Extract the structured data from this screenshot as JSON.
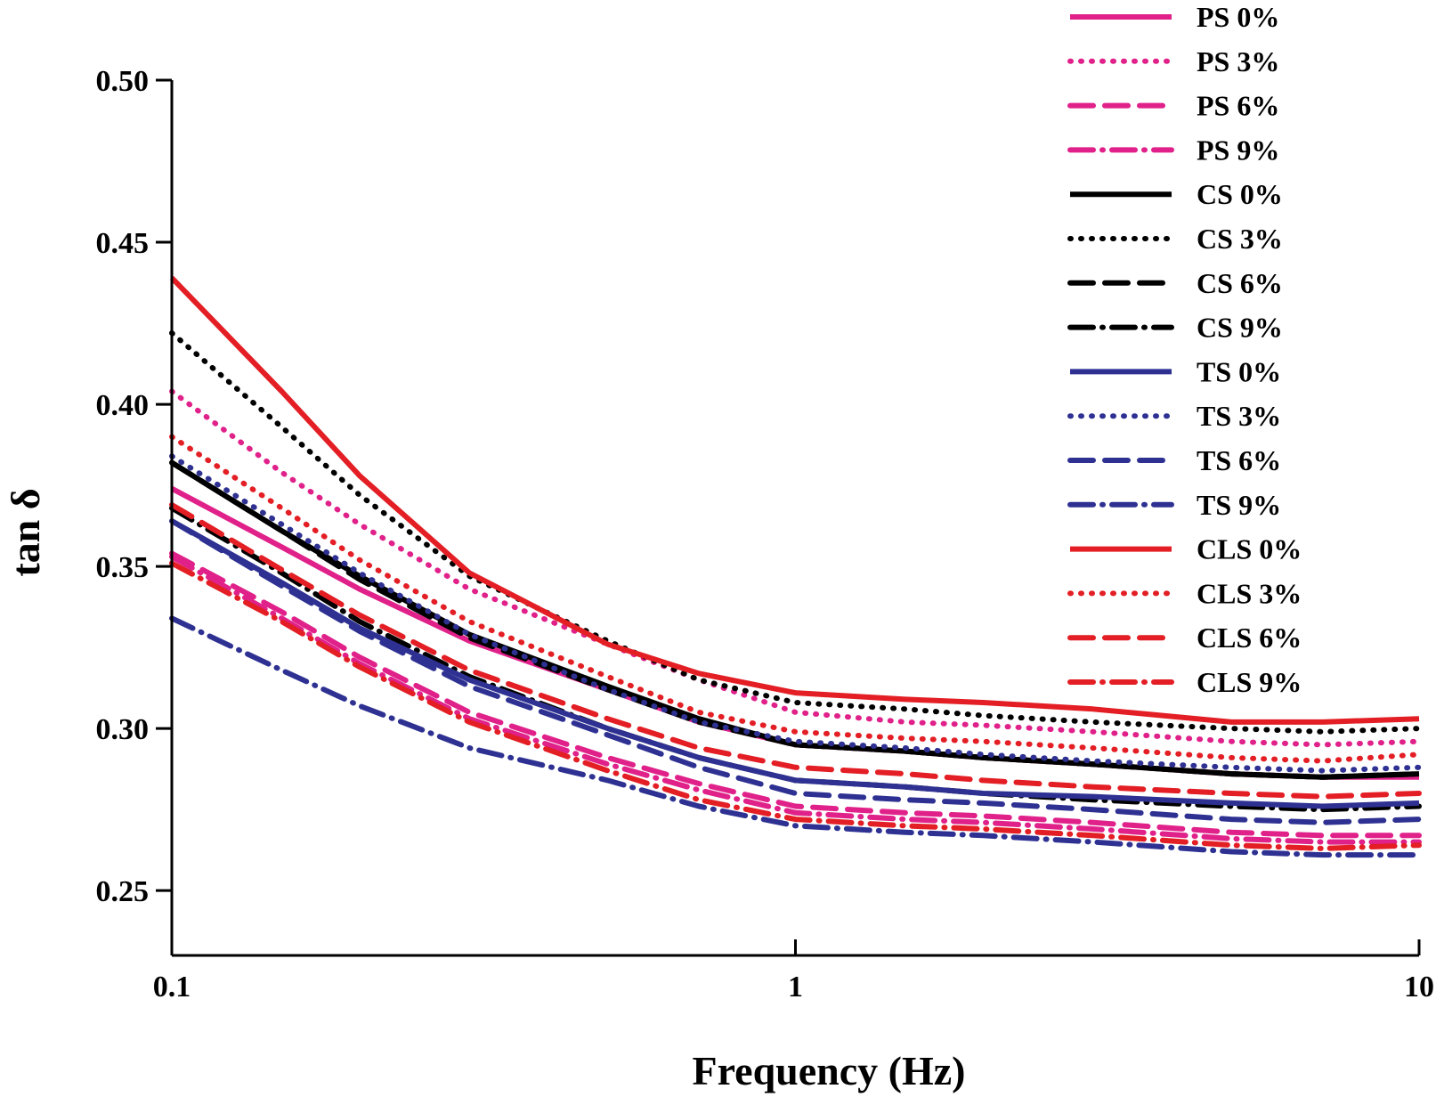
{
  "chart_data": {
    "type": "line",
    "xlabel": "Frequency (Hz)",
    "ylabel": "tan δ",
    "xscale": "log",
    "xlim": [
      0.1,
      10
    ],
    "ylim": [
      0.23,
      0.5
    ],
    "x_ticks": [
      0.1,
      1,
      10
    ],
    "x_tick_labels": [
      "0.1",
      "1",
      "10"
    ],
    "y_ticks": [
      0.25,
      0.3,
      0.35,
      0.4,
      0.45,
      0.5
    ],
    "y_tick_labels": [
      "0.25",
      "0.30",
      "0.35",
      "0.40",
      "0.45",
      "0.50"
    ],
    "grid": false,
    "legend_position": "top-right",
    "x": [
      0.1,
      0.15,
      0.2,
      0.3,
      0.5,
      0.7,
      1,
      1.5,
      2,
      3,
      5,
      7,
      10
    ],
    "series": [
      {
        "name": "PS 0%",
        "color": "#e0218a",
        "dash": "solid",
        "values": [
          0.374,
          0.356,
          0.343,
          0.327,
          0.312,
          0.302,
          0.295,
          0.293,
          0.291,
          0.289,
          0.286,
          0.285,
          0.285
        ]
      },
      {
        "name": "PS 3%",
        "color": "#e0218a",
        "dash": "dot",
        "values": [
          0.404,
          0.379,
          0.363,
          0.343,
          0.326,
          0.315,
          0.305,
          0.302,
          0.301,
          0.299,
          0.296,
          0.295,
          0.296
        ]
      },
      {
        "name": "PS 6%",
        "color": "#e0218a",
        "dash": "dash",
        "values": [
          0.354,
          0.336,
          0.322,
          0.305,
          0.291,
          0.283,
          0.276,
          0.274,
          0.273,
          0.271,
          0.268,
          0.267,
          0.267
        ]
      },
      {
        "name": "PS 9%",
        "color": "#e0218a",
        "dash": "dashdot",
        "values": [
          0.353,
          0.334,
          0.32,
          0.303,
          0.289,
          0.281,
          0.274,
          0.272,
          0.271,
          0.269,
          0.266,
          0.265,
          0.265
        ]
      },
      {
        "name": "CS 0%",
        "color": "#000000",
        "dash": "solid",
        "values": [
          0.382,
          0.361,
          0.347,
          0.329,
          0.313,
          0.303,
          0.295,
          0.293,
          0.291,
          0.289,
          0.286,
          0.285,
          0.286
        ]
      },
      {
        "name": "CS 3%",
        "color": "#000000",
        "dash": "dot",
        "values": [
          0.422,
          0.393,
          0.372,
          0.347,
          0.327,
          0.315,
          0.308,
          0.306,
          0.304,
          0.302,
          0.3,
          0.299,
          0.3
        ]
      },
      {
        "name": "CS 6%",
        "color": "#000000",
        "dash": "dash",
        "values": [
          0.382,
          0.361,
          0.346,
          0.328,
          0.312,
          0.302,
          0.295,
          0.293,
          0.291,
          0.289,
          0.286,
          0.285,
          0.286
        ]
      },
      {
        "name": "CS 9%",
        "color": "#000000",
        "dash": "dashdot",
        "values": [
          0.368,
          0.348,
          0.333,
          0.316,
          0.3,
          0.291,
          0.284,
          0.282,
          0.28,
          0.278,
          0.276,
          0.275,
          0.276
        ]
      },
      {
        "name": "TS 0%",
        "color": "#2e3192",
        "dash": "solid",
        "values": [
          0.364,
          0.345,
          0.331,
          0.315,
          0.3,
          0.291,
          0.284,
          0.282,
          0.28,
          0.279,
          0.277,
          0.276,
          0.277
        ]
      },
      {
        "name": "TS 3%",
        "color": "#2e3192",
        "dash": "dot",
        "values": [
          0.384,
          0.363,
          0.348,
          0.329,
          0.312,
          0.302,
          0.296,
          0.294,
          0.292,
          0.29,
          0.288,
          0.287,
          0.288
        ]
      },
      {
        "name": "TS 6%",
        "color": "#2e3192",
        "dash": "dash",
        "values": [
          0.364,
          0.344,
          0.33,
          0.313,
          0.298,
          0.288,
          0.28,
          0.278,
          0.277,
          0.275,
          0.272,
          0.271,
          0.272
        ]
      },
      {
        "name": "TS 9%",
        "color": "#2e3192",
        "dash": "dashdot",
        "values": [
          0.334,
          0.318,
          0.307,
          0.294,
          0.284,
          0.276,
          0.27,
          0.268,
          0.267,
          0.265,
          0.262,
          0.261,
          0.261
        ]
      },
      {
        "name": "CLS 0%",
        "color": "#e31e24",
        "dash": "solid",
        "values": [
          0.439,
          0.404,
          0.378,
          0.348,
          0.326,
          0.317,
          0.311,
          0.309,
          0.308,
          0.306,
          0.302,
          0.302,
          0.303
        ]
      },
      {
        "name": "CLS 3%",
        "color": "#e31e24",
        "dash": "dot",
        "values": [
          0.39,
          0.368,
          0.352,
          0.333,
          0.316,
          0.305,
          0.299,
          0.297,
          0.296,
          0.294,
          0.291,
          0.29,
          0.292
        ]
      },
      {
        "name": "CLS 6%",
        "color": "#e31e24",
        "dash": "dash",
        "values": [
          0.369,
          0.349,
          0.335,
          0.318,
          0.303,
          0.294,
          0.288,
          0.286,
          0.284,
          0.282,
          0.28,
          0.279,
          0.28
        ]
      },
      {
        "name": "CLS 9%",
        "color": "#e31e24",
        "dash": "dashdot",
        "values": [
          0.351,
          0.333,
          0.319,
          0.302,
          0.287,
          0.278,
          0.272,
          0.27,
          0.269,
          0.267,
          0.264,
          0.263,
          0.264
        ]
      }
    ]
  }
}
